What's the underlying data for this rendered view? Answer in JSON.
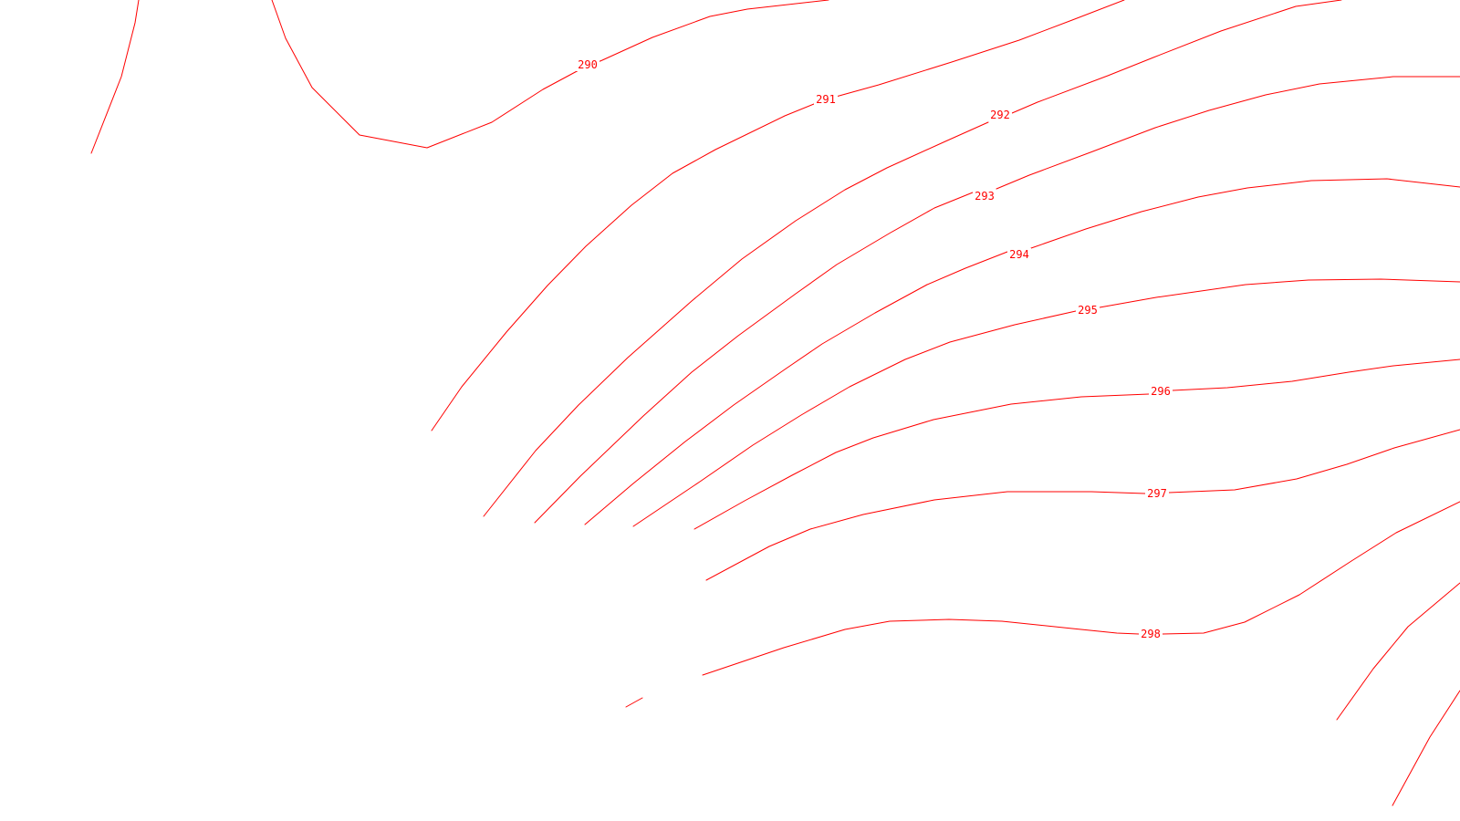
{
  "map": {
    "background_color": "#ffffff",
    "contour_color": "#ff0000",
    "contours": [
      {
        "level": "290",
        "label": "290"
      },
      {
        "level": "291",
        "label": "291"
      },
      {
        "level": "292",
        "label": "292"
      },
      {
        "level": "293",
        "label": "293"
      },
      {
        "level": "294",
        "label": "294"
      },
      {
        "level": "295",
        "label": "295"
      },
      {
        "level": "296",
        "label": "296"
      },
      {
        "level": "297",
        "label": "297"
      },
      {
        "level": "298",
        "label": "298"
      }
    ]
  }
}
